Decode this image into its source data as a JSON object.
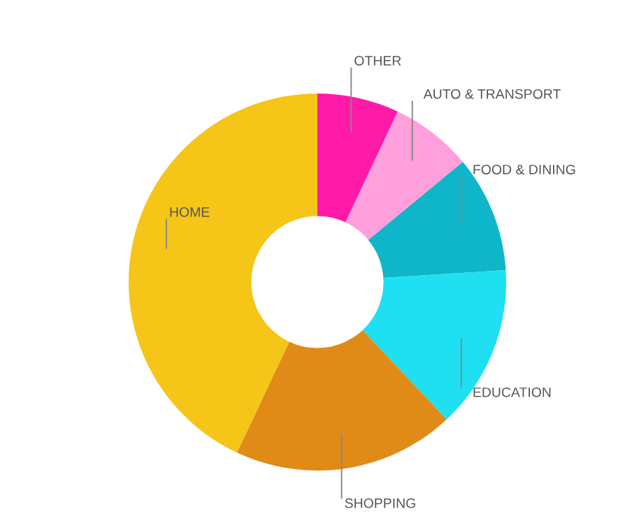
{
  "chart_data": {
    "type": "donut",
    "categories": [
      "OTHER",
      "AUTO & TRANSPORT",
      "FOOD & DINING",
      "EDUCATION",
      "SHOPPING",
      "HOME"
    ],
    "values": [
      7,
      7,
      10,
      14,
      19,
      43
    ],
    "colors": [
      "#ff1aa8",
      "#ffa0dc",
      "#0fb5c8",
      "#1ee0f0",
      "#e08a18",
      "#f5c518"
    ]
  }
}
